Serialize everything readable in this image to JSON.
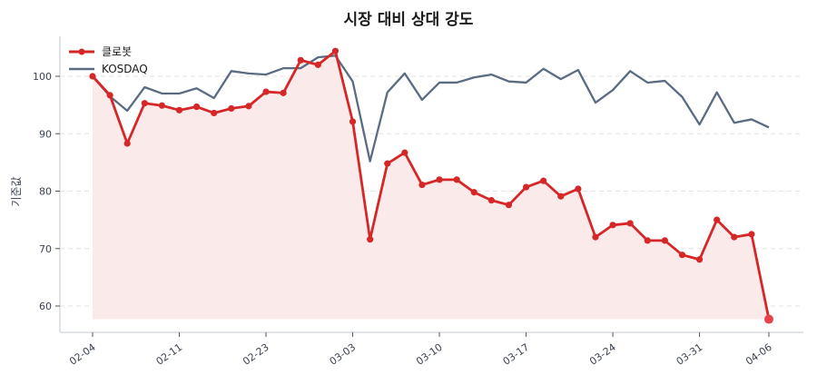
{
  "title": "시장 대비 상대 강도",
  "colors": {
    "stock": "#d62728",
    "stock_fill": "#fbe9e9",
    "index": "#5a6b82",
    "grid": "#e3e3e3",
    "axis": "#cfd3dc",
    "last_point": "#e8414a"
  },
  "legend": [
    {
      "label": "클로봇",
      "color": "#d62728",
      "marker": true
    },
    {
      "label": "KOSDAQ",
      "color": "#5a6b82",
      "marker": false
    }
  ],
  "chart_data": {
    "type": "line",
    "title": "시장 대비 상대 강도",
    "xlabel": "",
    "ylabel": "기준값",
    "ylim": [
      55.5,
      107
    ],
    "yticks": [
      60,
      70,
      80,
      90,
      100
    ],
    "grid": "horizontal dashed",
    "legend_position": "upper left",
    "x": [
      "02-04",
      "02-05",
      "02-06",
      "02-09",
      "02-10",
      "02-11",
      "02-12",
      "02-13",
      "02-19",
      "02-20",
      "02-23",
      "02-24",
      "02-25",
      "02-26",
      "02-27",
      "03-03",
      "03-04",
      "03-05",
      "03-06",
      "03-09",
      "03-10",
      "03-11",
      "03-12",
      "03-13",
      "03-16",
      "03-17",
      "03-18",
      "03-19",
      "03-20",
      "03-23",
      "03-24",
      "03-25",
      "03-26",
      "03-27",
      "03-30",
      "03-31",
      "04-01",
      "04-02",
      "04-03",
      "04-06"
    ],
    "xtick_indices": [
      0,
      5,
      10,
      15,
      20,
      25,
      30,
      35,
      39
    ],
    "xtick_labels": [
      "02-04",
      "02-11",
      "02-23",
      "03-03",
      "03-10",
      "03-17",
      "03-24",
      "03-31",
      "04-06"
    ],
    "series": [
      {
        "name": "클로봇",
        "values": [
          100,
          96.7,
          88.3,
          95.3,
          94.9,
          94.1,
          94.7,
          93.6,
          94.4,
          94.8,
          97.3,
          97.1,
          102.8,
          102.0,
          104.4,
          92.1,
          71.6,
          84.8,
          86.7,
          81.1,
          82.0,
          82.0,
          79.8,
          78.4,
          77.6,
          80.7,
          81.8,
          79.1,
          80.4,
          72.0,
          74.1,
          74.4,
          71.4,
          71.4,
          68.9,
          68.1,
          75.0,
          72.0,
          72.5,
          57.7
        ]
      },
      {
        "name": "KOSDAQ",
        "values": [
          100,
          96.5,
          94.0,
          98.1,
          97.0,
          97.0,
          97.9,
          96.2,
          100.9,
          100.5,
          100.3,
          101.4,
          101.4,
          103.3,
          103.6,
          99.1,
          85.2,
          97.2,
          100.5,
          95.9,
          98.9,
          98.9,
          99.8,
          100.3,
          99.1,
          98.9,
          101.3,
          99.5,
          101.1,
          95.4,
          97.6,
          100.9,
          98.9,
          99.2,
          96.4,
          91.6,
          97.2,
          91.9,
          92.5,
          91.1
        ]
      }
    ]
  }
}
